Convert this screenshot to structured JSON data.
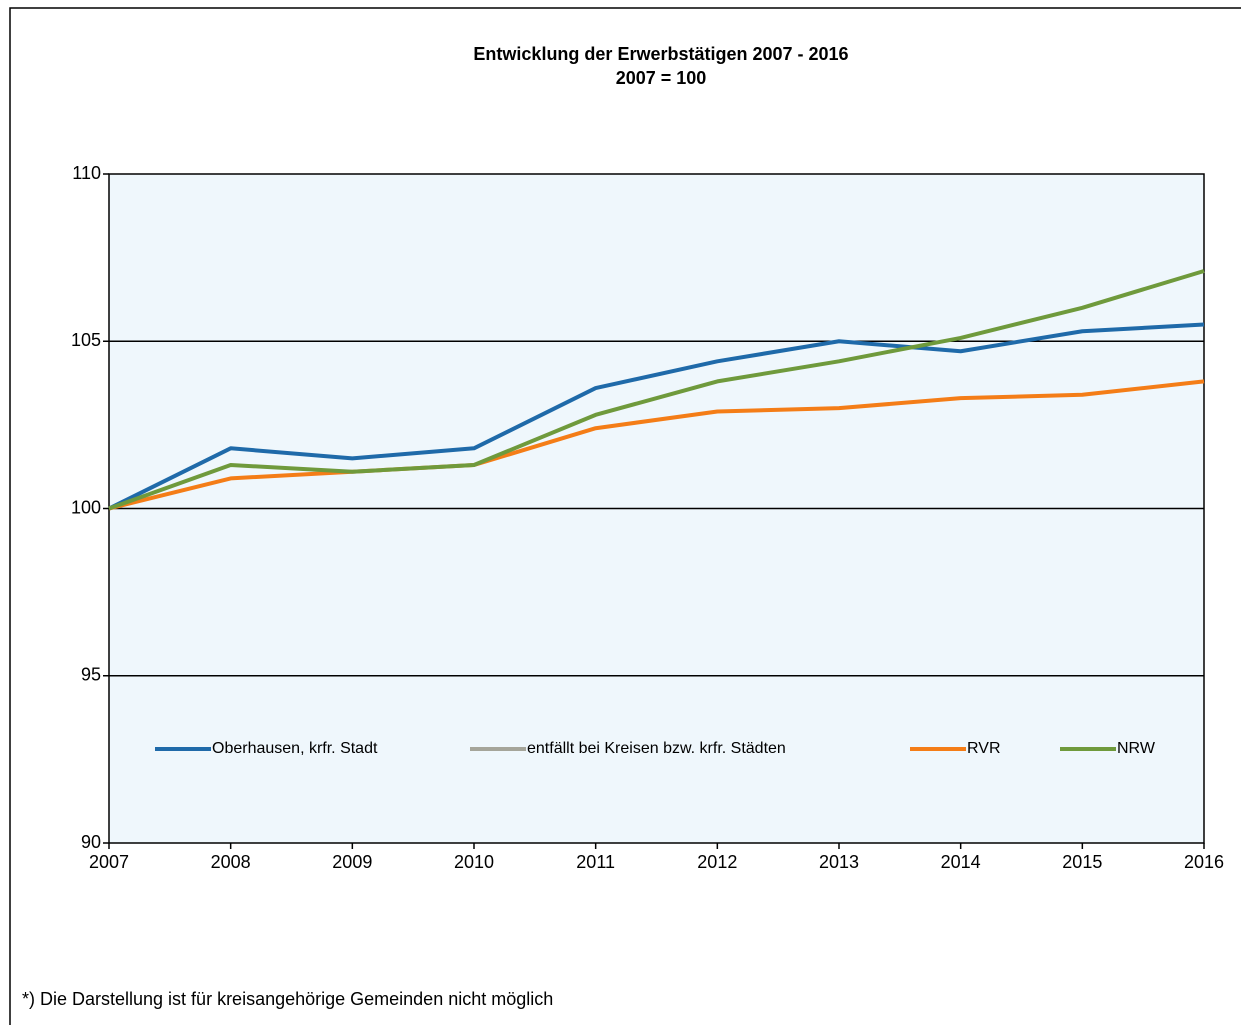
{
  "chart_data": {
    "type": "line",
    "title": "Entwicklung der Erwerbstätigen 2007 - 2016",
    "subtitle": "2007 = 100",
    "x": [
      2007,
      2008,
      2009,
      2010,
      2011,
      2012,
      2013,
      2014,
      2015,
      2016
    ],
    "xlim": [
      2007,
      2016
    ],
    "xticks": [
      2007,
      2008,
      2009,
      2010,
      2011,
      2012,
      2013,
      2014,
      2015,
      2016
    ],
    "ylim": [
      90,
      110
    ],
    "yticks": [
      90,
      95,
      100,
      105,
      110
    ],
    "grid": true,
    "legend": "bottom",
    "series": [
      {
        "name": "Oberhausen, krfr. Stadt",
        "color": "#1f6aa9",
        "values": [
          100,
          101.8,
          101.5,
          101.8,
          103.6,
          104.4,
          105.0,
          104.7,
          105.3,
          105.5
        ]
      },
      {
        "name": "entfällt bei Kreisen bzw. krfr. Städten",
        "color": "#a5a59a",
        "values": [
          null,
          null,
          null,
          null,
          null,
          null,
          null,
          null,
          null,
          null
        ]
      },
      {
        "name": "RVR",
        "color": "#f47d17",
        "values": [
          100,
          100.9,
          101.1,
          101.3,
          102.4,
          102.9,
          103.0,
          103.3,
          103.4,
          103.8
        ]
      },
      {
        "name": "NRW",
        "color": "#6f9a3c",
        "values": [
          100,
          101.3,
          101.1,
          101.3,
          102.8,
          103.8,
          104.4,
          105.1,
          106.0,
          107.1
        ]
      }
    ],
    "footnote": "*) Die Darstellung ist für kreisangehörige Gemeinden nicht möglich"
  }
}
